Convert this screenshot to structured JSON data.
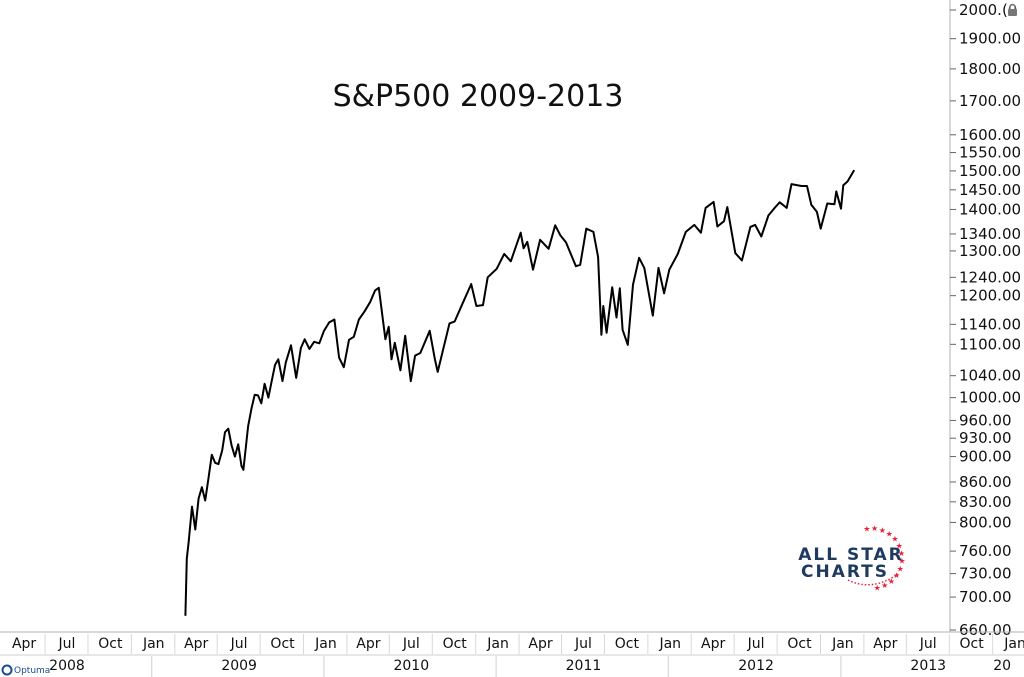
{
  "chart_data": {
    "type": "line",
    "title": "S&P500 2009-2013",
    "y_scale": "log",
    "ylim": [
      660,
      2000
    ],
    "y_ticks": [
      660,
      700,
      730,
      760,
      800,
      830,
      860,
      900,
      930,
      960,
      1000,
      1040,
      1100,
      1140,
      1200,
      1240,
      1300,
      1340,
      1400,
      1450,
      1500,
      1550,
      1600,
      1700,
      1800,
      1900,
      2000
    ],
    "y_tick_labels": [
      "660.00",
      "700.00",
      "730.00",
      "760.00",
      "800.00",
      "830.00",
      "860.00",
      "900.00",
      "930.00",
      "960.00",
      "1000.00",
      "1040.00",
      "1100.00",
      "1140.00",
      "1200.00",
      "1240.00",
      "1300.00",
      "1340.00",
      "1400.00",
      "1450.00",
      "1500.00",
      "1550.00",
      "1600.00",
      "1700.00",
      "1800.00",
      "1900.00",
      "2000.(0"
    ],
    "x_months": [
      {
        "label": "Apr",
        "date": "2008-04-01"
      },
      {
        "label": "Jul",
        "date": "2008-07-01"
      },
      {
        "label": "Oct",
        "date": "2008-10-01"
      },
      {
        "label": "Jan",
        "date": "2009-01-01"
      },
      {
        "label": "Apr",
        "date": "2009-04-01"
      },
      {
        "label": "Jul",
        "date": "2009-07-01"
      },
      {
        "label": "Oct",
        "date": "2009-10-01"
      },
      {
        "label": "Jan",
        "date": "2010-01-01"
      },
      {
        "label": "Apr",
        "date": "2010-04-01"
      },
      {
        "label": "Jul",
        "date": "2010-07-01"
      },
      {
        "label": "Oct",
        "date": "2010-10-01"
      },
      {
        "label": "Jan",
        "date": "2011-01-01"
      },
      {
        "label": "Apr",
        "date": "2011-04-01"
      },
      {
        "label": "Jul",
        "date": "2011-07-01"
      },
      {
        "label": "Oct",
        "date": "2011-10-01"
      },
      {
        "label": "Jan",
        "date": "2012-01-01"
      },
      {
        "label": "Apr",
        "date": "2012-04-01"
      },
      {
        "label": "Jul",
        "date": "2012-07-01"
      },
      {
        "label": "Oct",
        "date": "2012-10-01"
      },
      {
        "label": "Jan",
        "date": "2013-01-01"
      },
      {
        "label": "Apr",
        "date": "2013-04-01"
      },
      {
        "label": "Jul",
        "date": "2013-07-01"
      },
      {
        "label": "Oct",
        "date": "2013-10-01"
      },
      {
        "label": "Jan",
        "date": "2014-01-01"
      }
    ],
    "x_years": [
      {
        "label": "2008",
        "date": "2008-07-01"
      },
      {
        "label": "2009",
        "date": "2009-07-01"
      },
      {
        "label": "2010",
        "date": "2010-07-01"
      },
      {
        "label": "2011",
        "date": "2011-07-01"
      },
      {
        "label": "2012",
        "date": "2012-07-01"
      },
      {
        "label": "2013",
        "date": "2013-07-01"
      },
      {
        "label": "20",
        "date": "2014-01-01"
      }
    ],
    "x_range": [
      "2008-02-10",
      "2014-01-20"
    ],
    "series": [
      {
        "color": "#000000",
        "points": [
          [
            "2009-03-09",
            677
          ],
          [
            "2009-03-12",
            750
          ],
          [
            "2009-03-16",
            773
          ],
          [
            "2009-03-23",
            823
          ],
          [
            "2009-03-30",
            790
          ],
          [
            "2009-04-06",
            835
          ],
          [
            "2009-04-13",
            852
          ],
          [
            "2009-04-20",
            832
          ],
          [
            "2009-04-27",
            866
          ],
          [
            "2009-05-04",
            903
          ],
          [
            "2009-05-11",
            890
          ],
          [
            "2009-05-18",
            888
          ],
          [
            "2009-05-26",
            910
          ],
          [
            "2009-06-01",
            940
          ],
          [
            "2009-06-08",
            946
          ],
          [
            "2009-06-15",
            918
          ],
          [
            "2009-06-22",
            900
          ],
          [
            "2009-06-29",
            920
          ],
          [
            "2009-07-06",
            885
          ],
          [
            "2009-07-10",
            879
          ],
          [
            "2009-07-20",
            950
          ],
          [
            "2009-07-27",
            980
          ],
          [
            "2009-08-03",
            1005
          ],
          [
            "2009-08-10",
            1004
          ],
          [
            "2009-08-17",
            990
          ],
          [
            "2009-08-24",
            1025
          ],
          [
            "2009-09-01",
            1000
          ],
          [
            "2009-09-08",
            1030
          ],
          [
            "2009-09-15",
            1060
          ],
          [
            "2009-09-22",
            1071
          ],
          [
            "2009-10-01",
            1030
          ],
          [
            "2009-10-08",
            1065
          ],
          [
            "2009-10-19",
            1098
          ],
          [
            "2009-10-30",
            1036
          ],
          [
            "2009-11-09",
            1093
          ],
          [
            "2009-11-17",
            1110
          ],
          [
            "2009-11-27",
            1091
          ],
          [
            "2009-12-07",
            1105
          ],
          [
            "2009-12-18",
            1102
          ],
          [
            "2009-12-28",
            1127
          ],
          [
            "2010-01-08",
            1144
          ],
          [
            "2010-01-19",
            1150
          ],
          [
            "2010-01-29",
            1074
          ],
          [
            "2010-02-08",
            1056
          ],
          [
            "2010-02-19",
            1109
          ],
          [
            "2010-03-01",
            1115
          ],
          [
            "2010-03-12",
            1150
          ],
          [
            "2010-03-24",
            1167
          ],
          [
            "2010-04-05",
            1187
          ],
          [
            "2010-04-15",
            1211
          ],
          [
            "2010-04-23",
            1217
          ],
          [
            "2010-05-07",
            1110
          ],
          [
            "2010-05-14",
            1135
          ],
          [
            "2010-05-20",
            1071
          ],
          [
            "2010-05-27",
            1103
          ],
          [
            "2010-06-08",
            1050
          ],
          [
            "2010-06-18",
            1117
          ],
          [
            "2010-06-30",
            1030
          ],
          [
            "2010-07-09",
            1078
          ],
          [
            "2010-07-20",
            1083
          ],
          [
            "2010-08-09",
            1127
          ],
          [
            "2010-08-20",
            1071
          ],
          [
            "2010-08-26",
            1047
          ],
          [
            "2010-09-07",
            1092
          ],
          [
            "2010-09-20",
            1142
          ],
          [
            "2010-10-01",
            1146
          ],
          [
            "2010-10-18",
            1184
          ],
          [
            "2010-11-05",
            1225
          ],
          [
            "2010-11-16",
            1178
          ],
          [
            "2010-11-30",
            1180
          ],
          [
            "2010-12-10",
            1240
          ],
          [
            "2010-12-29",
            1259
          ],
          [
            "2011-01-14",
            1293
          ],
          [
            "2011-01-28",
            1276
          ],
          [
            "2011-02-18",
            1343
          ],
          [
            "2011-02-24",
            1306
          ],
          [
            "2011-03-04",
            1321
          ],
          [
            "2011-03-16",
            1257
          ],
          [
            "2011-03-31",
            1326
          ],
          [
            "2011-04-18",
            1305
          ],
          [
            "2011-05-02",
            1361
          ],
          [
            "2011-05-13",
            1337
          ],
          [
            "2011-05-25",
            1320
          ],
          [
            "2011-06-15",
            1265
          ],
          [
            "2011-06-24",
            1268
          ],
          [
            "2011-07-07",
            1353
          ],
          [
            "2011-07-22",
            1345
          ],
          [
            "2011-08-01",
            1286
          ],
          [
            "2011-08-08",
            1119
          ],
          [
            "2011-08-12",
            1178
          ],
          [
            "2011-08-19",
            1123
          ],
          [
            "2011-08-31",
            1218
          ],
          [
            "2011-09-09",
            1154
          ],
          [
            "2011-09-16",
            1216
          ],
          [
            "2011-09-22",
            1129
          ],
          [
            "2011-10-03",
            1099
          ],
          [
            "2011-10-14",
            1224
          ],
          [
            "2011-10-27",
            1284
          ],
          [
            "2011-11-07",
            1261
          ],
          [
            "2011-11-25",
            1158
          ],
          [
            "2011-12-07",
            1261
          ],
          [
            "2011-12-19",
            1205
          ],
          [
            "2011-12-30",
            1257
          ],
          [
            "2012-01-17",
            1293
          ],
          [
            "2012-02-03",
            1345
          ],
          [
            "2012-02-21",
            1362
          ],
          [
            "2012-03-06",
            1343
          ],
          [
            "2012-03-16",
            1404
          ],
          [
            "2012-04-02",
            1419
          ],
          [
            "2012-04-10",
            1358
          ],
          [
            "2012-04-24",
            1371
          ],
          [
            "2012-05-01",
            1406
          ],
          [
            "2012-05-18",
            1295
          ],
          [
            "2012-06-01",
            1278
          ],
          [
            "2012-06-19",
            1357
          ],
          [
            "2012-06-29",
            1362
          ],
          [
            "2012-07-12",
            1334
          ],
          [
            "2012-07-27",
            1385
          ],
          [
            "2012-08-10",
            1405
          ],
          [
            "2012-08-20",
            1418
          ],
          [
            "2012-09-04",
            1404
          ],
          [
            "2012-09-14",
            1465
          ],
          [
            "2012-10-05",
            1460
          ],
          [
            "2012-10-17",
            1460
          ],
          [
            "2012-10-26",
            1412
          ],
          [
            "2012-11-07",
            1394
          ],
          [
            "2012-11-15",
            1353
          ],
          [
            "2012-11-29",
            1415
          ],
          [
            "2012-12-14",
            1413
          ],
          [
            "2012-12-18",
            1446
          ],
          [
            "2012-12-28",
            1402
          ],
          [
            "2013-01-02",
            1462
          ],
          [
            "2013-01-11",
            1472
          ],
          [
            "2013-01-25",
            1502
          ]
        ]
      }
    ]
  },
  "logo": {
    "line1": "ALL STAR",
    "line2": "CHARTS",
    "star_color": "#e8203a",
    "text_color": "#1f3a5f"
  },
  "vendor": {
    "name": "Optuma"
  }
}
